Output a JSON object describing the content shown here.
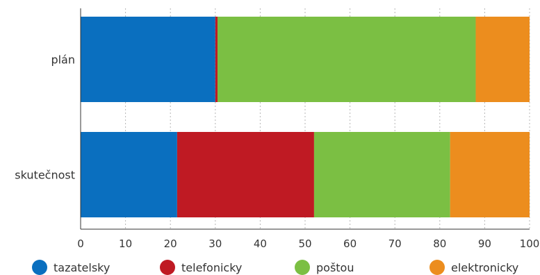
{
  "chart_data": {
    "type": "bar",
    "orientation": "horizontal",
    "stacked": true,
    "categories": [
      "plán",
      "skutečnost"
    ],
    "series": [
      {
        "name": "tazatelsky",
        "color": "#0a6fbf",
        "values": [
          30,
          21.5
        ]
      },
      {
        "name": "telefonicky",
        "color": "#bf1a23",
        "values": [
          0.5,
          30.5
        ]
      },
      {
        "name": "poštou",
        "color": "#7bbf43",
        "values": [
          57.5,
          30.3
        ]
      },
      {
        "name": "elektronicky",
        "color": "#ec8d1e",
        "values": [
          12,
          17.7
        ]
      }
    ],
    "xlim": [
      0,
      100
    ],
    "xticks": [
      "0",
      "10",
      "20",
      "30",
      "40",
      "50",
      "60",
      "70",
      "80",
      "90",
      "100"
    ],
    "grid": "vertical dashed",
    "legend_position": "bottom"
  }
}
